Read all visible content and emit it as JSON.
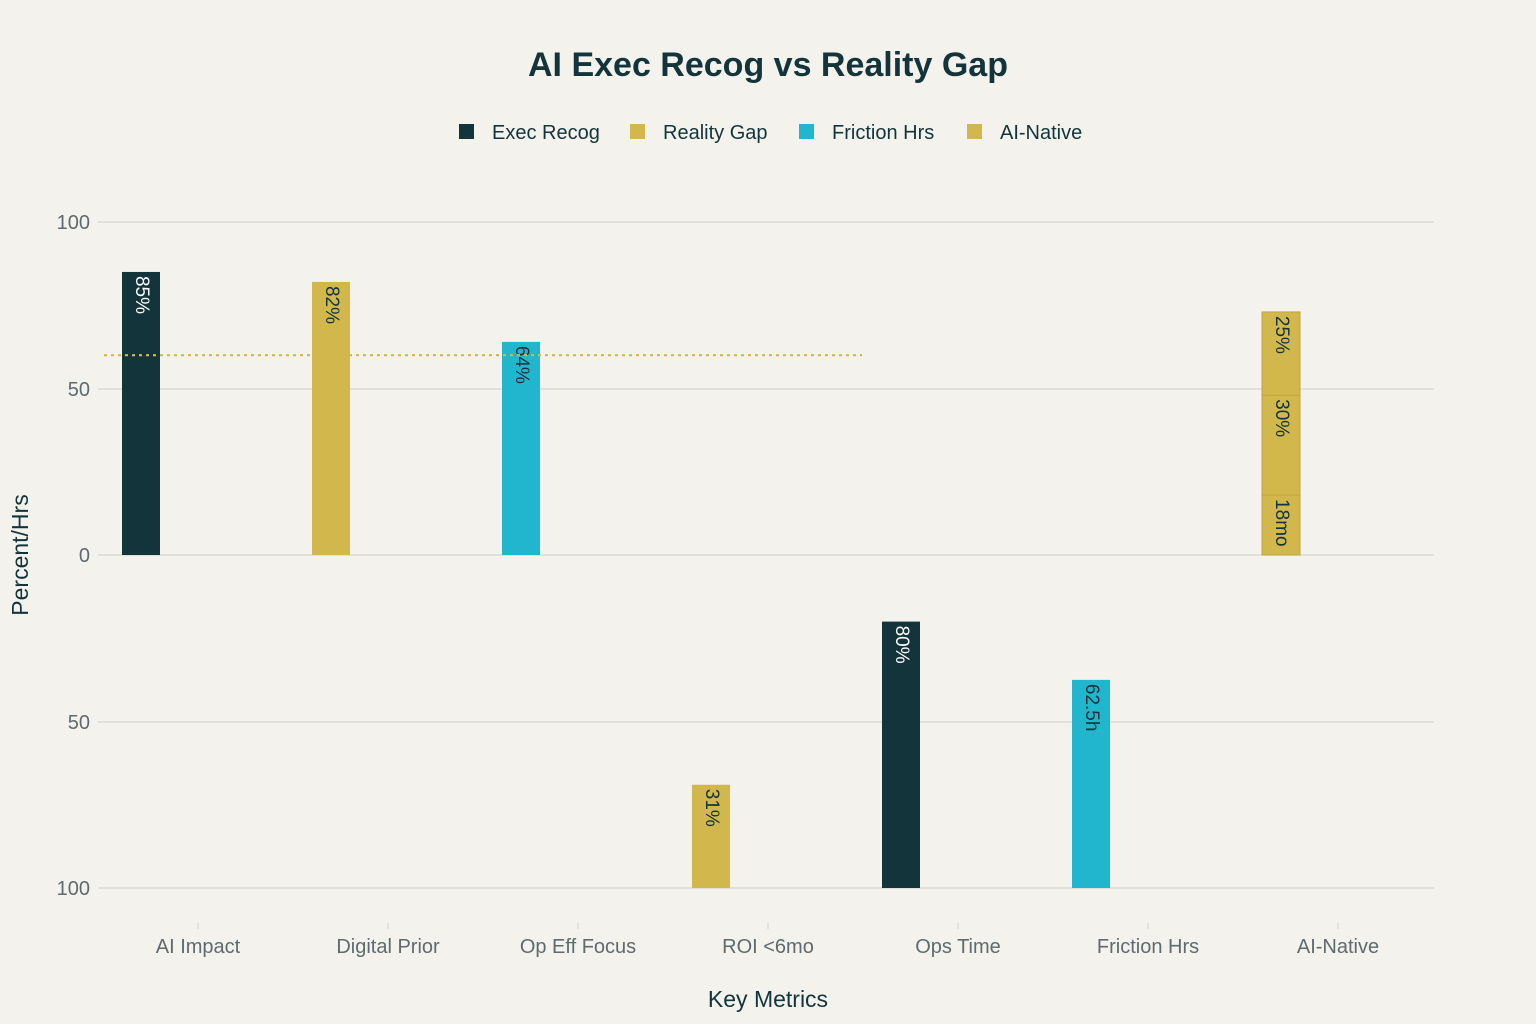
{
  "chart_data": {
    "type": "bar",
    "title": "AI Exec Recog vs Reality Gap",
    "xlabel": "Key Metrics",
    "ylabel": "Percent/Hrs",
    "categories": [
      "AI Impact",
      "Digital Prior",
      "Op Eff Focus",
      "ROI <6mo",
      "Ops Time",
      "Friction Hrs",
      "AI-Native"
    ],
    "upper_panel": {
      "ylim": [
        0,
        100
      ],
      "ticks": [
        "0",
        "50",
        "100"
      ]
    },
    "lower_panel": {
      "ylim": [
        100,
        0
      ],
      "ticks": [
        "50",
        "100"
      ]
    },
    "series": [
      {
        "name": "Exec Recog",
        "color": "#13343b"
      },
      {
        "name": "Reality Gap",
        "color": "#d2b84c"
      },
      {
        "name": "Friction Hrs",
        "color": "#21b6cd"
      },
      {
        "name": "AI-Native",
        "color": "#d2b84c"
      }
    ],
    "bars": [
      {
        "category": "AI Impact",
        "series": "Exec Recog",
        "panel": "upper",
        "value": 85,
        "label": "85%"
      },
      {
        "category": "Digital Prior",
        "series": "Reality Gap",
        "panel": "upper",
        "value": 82,
        "label": "82%"
      },
      {
        "category": "Op Eff Focus",
        "series": "Friction Hrs",
        "panel": "upper",
        "value": 64,
        "label": "64%"
      },
      {
        "category": "ROI <6mo",
        "series": "Reality Gap",
        "panel": "lower",
        "value": 31,
        "label": "31%"
      },
      {
        "category": "Ops Time",
        "series": "Exec Recog",
        "panel": "lower",
        "value": 80,
        "label": "80%"
      },
      {
        "category": "Friction Hrs",
        "series": "Friction Hrs",
        "panel": "lower",
        "value": 62.5,
        "label": "62.5h"
      }
    ],
    "stacked": {
      "category": "AI-Native",
      "series": "AI-Native",
      "panel": "upper",
      "segments": [
        {
          "value": 18,
          "label": "18mo"
        },
        {
          "value": 30,
          "label": "30%"
        },
        {
          "value": 25,
          "label": "25%"
        }
      ]
    },
    "reference_line": {
      "value": 60,
      "panel": "upper",
      "color": "#d2b84c",
      "style": "dotted"
    },
    "grid": true,
    "legend_position": "top"
  }
}
